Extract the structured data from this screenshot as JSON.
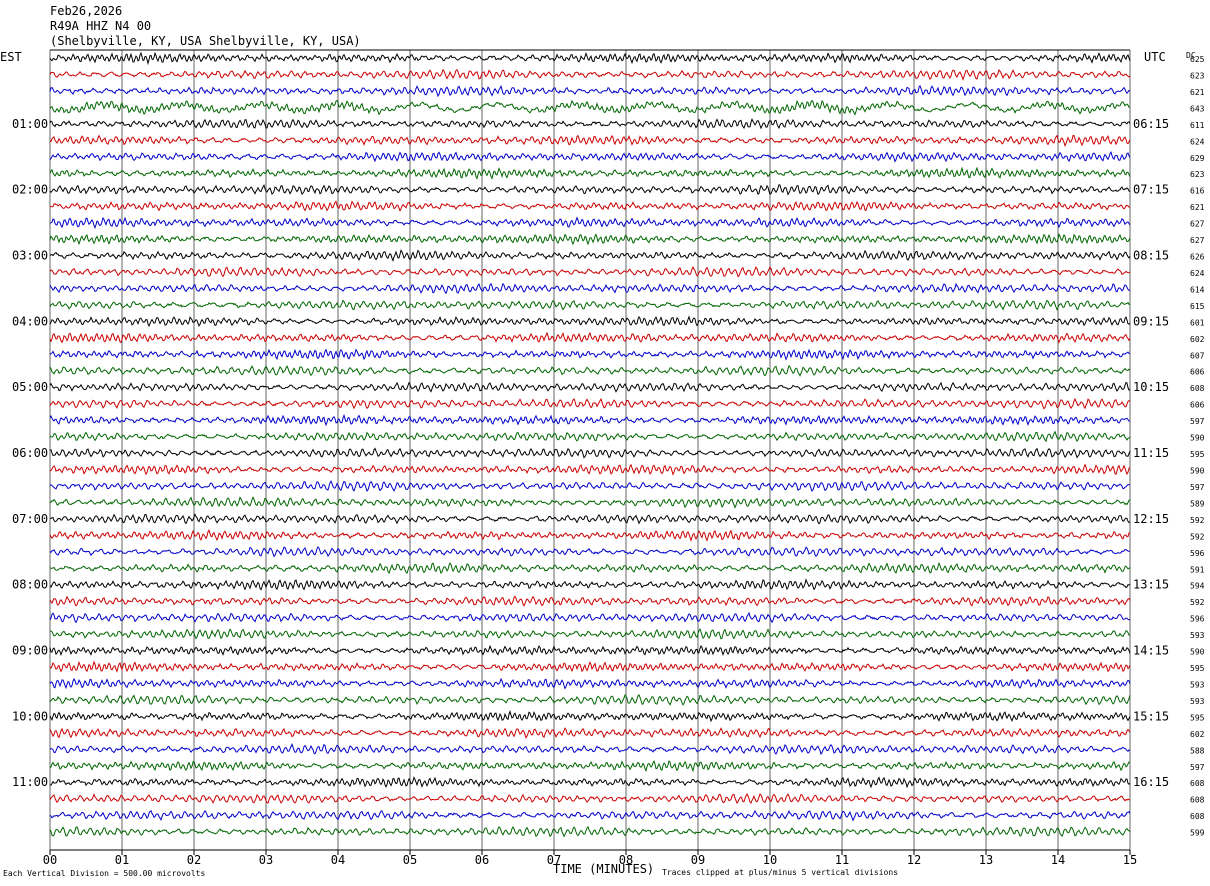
{
  "header": {
    "date": "Feb26,2026",
    "station": "R49A HHZ N4 00",
    "location": "(Shelbyville, KY, USA Shelbyville, KY, USA)"
  },
  "labels": {
    "left_tz": "EST",
    "right_tz": "UTC",
    "dc": "DC",
    "xlabel": "TIME (MINUTES)",
    "scale_note": "Each Vertical Division =  500.00 microvolts",
    "clip_note": "Traces clipped at plus/minus 5 vertical divisions"
  },
  "colors": {
    "cycle": [
      "#000000",
      "#cc0000",
      "#0000cc",
      "#006600"
    ],
    "grid": "#000000"
  },
  "chart_data": {
    "type": "line",
    "title": "",
    "xlabel": "TIME (MINUTES)",
    "x_ticks": [
      "00",
      "01",
      "02",
      "03",
      "04",
      "05",
      "06",
      "07",
      "08",
      "09",
      "10",
      "11",
      "12",
      "13",
      "14",
      "15"
    ],
    "xlim": [
      0,
      15
    ],
    "row_count": 48,
    "minutes_per_row": 15,
    "left_hour_labels": [
      "01:00",
      "02:00",
      "03:00",
      "04:00",
      "05:00",
      "06:00",
      "07:00",
      "08:00",
      "09:00",
      "10:00",
      "11:00"
    ],
    "right_hour_labels": [
      "06:15",
      "07:15",
      "08:15",
      "09:15",
      "10:15",
      "11:15",
      "12:15",
      "13:15",
      "14:15",
      "15:15",
      "16:15"
    ],
    "dc_offsets": [
      625,
      623,
      621,
      643,
      611,
      624,
      629,
      623,
      616,
      621,
      627,
      627,
      626,
      624,
      614,
      615,
      601,
      602,
      607,
      606,
      608,
      606,
      597,
      590,
      595,
      590,
      597,
      589,
      592,
      592,
      596,
      591,
      594,
      592,
      596,
      593,
      590,
      595,
      593,
      593,
      595,
      602,
      588,
      597,
      608,
      608,
      608,
      599
    ],
    "grid": true
  }
}
